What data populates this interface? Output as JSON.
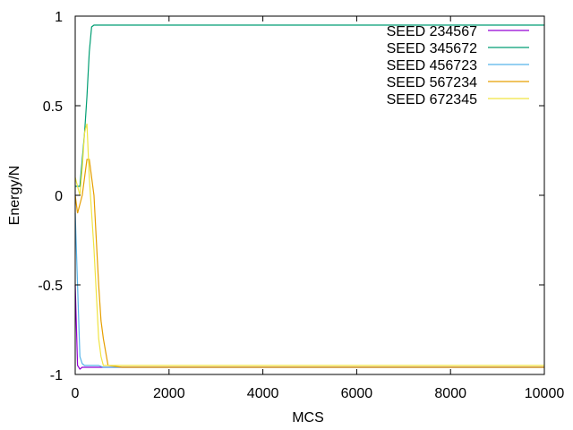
{
  "chart_data": {
    "type": "line",
    "xlabel": "MCS",
    "ylabel": "Energy/N",
    "xlim": [
      0,
      10000
    ],
    "ylim": [
      -1,
      1
    ],
    "x_ticks": [
      0,
      2000,
      4000,
      6000,
      8000,
      10000
    ],
    "x_tick_labels": [
      "0",
      "2000",
      "4000",
      "6000",
      "8000",
      "10000"
    ],
    "y_ticks": [
      -1,
      -0.5,
      0,
      0.5,
      1
    ],
    "y_tick_labels": [
      "-1",
      "-0.5",
      "0",
      "0.5",
      "1"
    ],
    "grid": false,
    "legend_position": "top-right",
    "series": [
      {
        "name": "SEED 234567",
        "color": "#9400d3",
        "x": [
          0,
          50,
          100,
          150,
          200,
          300,
          500,
          1000,
          2000,
          4000,
          6000,
          8000,
          10000
        ],
        "y": [
          -0.5,
          -0.95,
          -0.97,
          -0.96,
          -0.96,
          -0.96,
          -0.96,
          -0.96,
          -0.96,
          -0.96,
          -0.96,
          -0.96,
          -0.96
        ]
      },
      {
        "name": "SEED 345672",
        "color": "#009e73",
        "x": [
          0,
          100,
          150,
          200,
          250,
          300,
          350,
          400,
          1000,
          2000,
          4000,
          6000,
          8000,
          10000
        ],
        "y": [
          0.05,
          0.05,
          0.2,
          0.35,
          0.55,
          0.8,
          0.94,
          0.95,
          0.95,
          0.95,
          0.95,
          0.95,
          0.95,
          0.95
        ]
      },
      {
        "name": "SEED 456723",
        "color": "#56b4e9",
        "x": [
          0,
          50,
          100,
          150,
          200,
          300,
          500,
          600,
          1000,
          2000,
          4000,
          6000,
          8000,
          10000
        ],
        "y": [
          -0.1,
          -0.5,
          -0.9,
          -0.94,
          -0.95,
          -0.95,
          -0.95,
          -0.96,
          -0.96,
          -0.96,
          -0.96,
          -0.96,
          -0.96,
          -0.96
        ]
      },
      {
        "name": "SEED 567234",
        "color": "#e69f00",
        "x": [
          0,
          50,
          100,
          150,
          200,
          250,
          300,
          400,
          450,
          500,
          550,
          600,
          700,
          1000,
          2000,
          4000,
          6000,
          8000,
          10000
        ],
        "y": [
          0.0,
          -0.1,
          -0.05,
          0.0,
          0.1,
          0.2,
          0.2,
          0.0,
          -0.25,
          -0.5,
          -0.7,
          -0.8,
          -0.95,
          -0.96,
          -0.96,
          -0.96,
          -0.96,
          -0.96,
          -0.96
        ]
      },
      {
        "name": "SEED 672345",
        "color": "#f0e442",
        "x": [
          0,
          50,
          100,
          150,
          200,
          250,
          300,
          350,
          400,
          450,
          500,
          550,
          600,
          700,
          1000,
          2000,
          4000,
          6000,
          8000,
          10000
        ],
        "y": [
          0.1,
          0.05,
          0.0,
          0.15,
          0.35,
          0.4,
          0.1,
          -0.1,
          -0.3,
          -0.55,
          -0.8,
          -0.9,
          -0.95,
          -0.95,
          -0.95,
          -0.95,
          -0.95,
          -0.95,
          -0.95,
          -0.95
        ]
      }
    ]
  }
}
